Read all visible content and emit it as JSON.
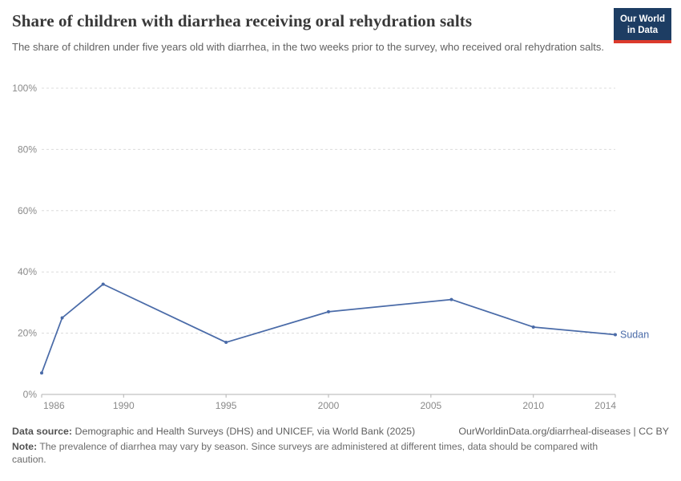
{
  "header": {
    "title": "Share of children with diarrhea receiving oral rehydration salts",
    "subtitle": "The share of children under five years old with diarrhea, in the two weeks prior to the survey, who received oral rehydration salts.",
    "logo_line1": "Our World",
    "logo_line2": "in Data"
  },
  "chart_data": {
    "type": "line",
    "title": "Share of children with diarrhea receiving oral rehydration salts",
    "x": [
      1986,
      1987,
      1989,
      1995,
      2000,
      2006,
      2010,
      2014
    ],
    "series": [
      {
        "name": "Sudan",
        "values": [
          7,
          25,
          36,
          17,
          27,
          31,
          22,
          19.5
        ]
      }
    ],
    "xlabel": "",
    "ylabel": "",
    "xlim": [
      1986,
      2014
    ],
    "ylim": [
      0,
      100
    ],
    "xticks": [
      1986,
      1990,
      1995,
      2000,
      2005,
      2010,
      2014
    ],
    "yticks": [
      0,
      20,
      40,
      60,
      80,
      100
    ],
    "ytick_suffix": "%",
    "grid": "horizontal-dashed",
    "legend_position": "line-end-label"
  },
  "footer": {
    "datasource_label": "Data source:",
    "datasource_text": " Demographic and Health Surveys (DHS) and UNICEF, via World Bank (2025)",
    "credit": "OurWorldinData.org/diarrheal-diseases | CC BY",
    "note_label": "Note:",
    "note_text": " The prevalence of diarrhea may vary by season. Since surveys are administered at different times, data should be compared with caution."
  },
  "colors": {
    "line": "#4a6ba8",
    "grid": "#dcdcdc",
    "axis": "#b3b3b3",
    "tick_label": "#8a8a8a",
    "logo_bg": "#1d3d63",
    "logo_stripe": "#dc3a2c"
  }
}
